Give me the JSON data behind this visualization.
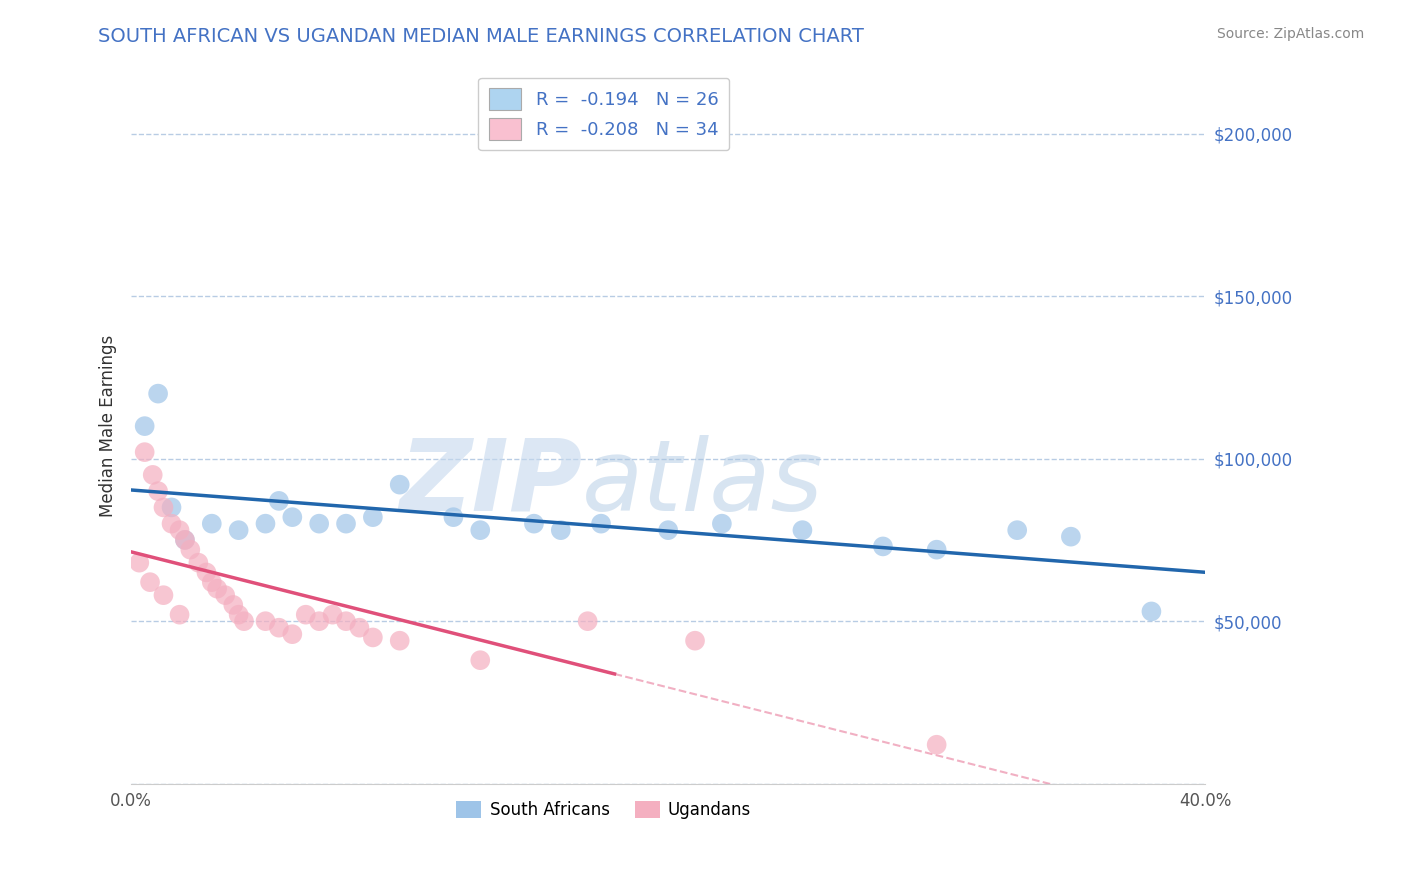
{
  "title": "SOUTH AFRICAN VS UGANDAN MEDIAN MALE EARNINGS CORRELATION CHART",
  "source": "Source: ZipAtlas.com",
  "ylabel": "Median Male Earnings",
  "xlim": [
    0.0,
    0.4
  ],
  "ylim": [
    0,
    220000
  ],
  "yticks": [
    0,
    50000,
    100000,
    150000,
    200000
  ],
  "xticks": [
    0.0,
    0.05,
    0.1,
    0.15,
    0.2,
    0.25,
    0.3,
    0.35,
    0.4
  ],
  "xtick_labels": [
    "0.0%",
    "",
    "",
    "",
    "",
    "",
    "",
    "",
    "40.0%"
  ],
  "background_color": "#ffffff",
  "plot_bg_color": "#ffffff",
  "grid_color": "#b8cce4",
  "sa_color": "#9ec4e8",
  "ug_color": "#f4afc0",
  "legend_r_sa": "R =  -0.194",
  "legend_n_sa": "N = 26",
  "legend_r_ug": "R =  -0.208",
  "legend_n_ug": "N = 34",
  "sa_line_color": "#2166ac",
  "ug_line_color": "#e0507a",
  "watermark_zip": "ZIP",
  "watermark_atlas": "atlas",
  "right_ytick_labels": [
    "$200,000",
    "$150,000",
    "$100,000",
    "$50,000"
  ],
  "right_ytick_vals": [
    200000,
    150000,
    100000,
    50000
  ],
  "sa_scatter_x": [
    0.01,
    0.02,
    0.03,
    0.04,
    0.05,
    0.06,
    0.07,
    0.08,
    0.09,
    0.1,
    0.12,
    0.15,
    0.175,
    0.2,
    0.22,
    0.25,
    0.28,
    0.3,
    0.35,
    0.38,
    0.005,
    0.015,
    0.055,
    0.13,
    0.16,
    0.33
  ],
  "sa_scatter_y": [
    120000,
    75000,
    80000,
    78000,
    80000,
    82000,
    80000,
    80000,
    82000,
    92000,
    82000,
    80000,
    80000,
    78000,
    80000,
    78000,
    73000,
    72000,
    76000,
    53000,
    110000,
    85000,
    87000,
    78000,
    78000,
    78000
  ],
  "ug_scatter_x": [
    0.005,
    0.008,
    0.01,
    0.012,
    0.015,
    0.018,
    0.02,
    0.022,
    0.025,
    0.028,
    0.03,
    0.032,
    0.035,
    0.038,
    0.04,
    0.042,
    0.05,
    0.055,
    0.06,
    0.065,
    0.07,
    0.075,
    0.08,
    0.085,
    0.09,
    0.1,
    0.13,
    0.17,
    0.21,
    0.003,
    0.007,
    0.012,
    0.018,
    0.3
  ],
  "ug_scatter_y": [
    102000,
    95000,
    90000,
    85000,
    80000,
    78000,
    75000,
    72000,
    68000,
    65000,
    62000,
    60000,
    58000,
    55000,
    52000,
    50000,
    50000,
    48000,
    46000,
    52000,
    50000,
    52000,
    50000,
    48000,
    45000,
    44000,
    38000,
    50000,
    44000,
    68000,
    62000,
    58000,
    52000,
    12000
  ]
}
